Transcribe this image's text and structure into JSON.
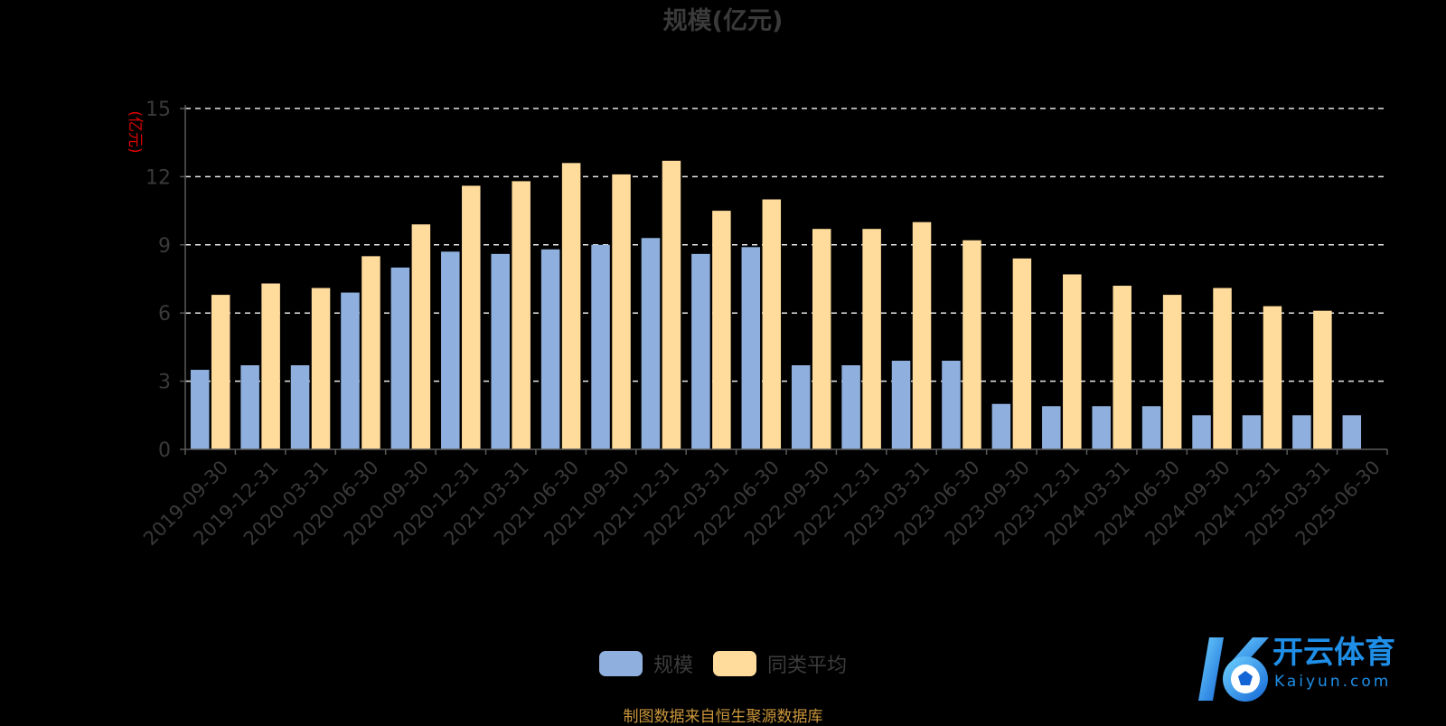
{
  "chart_data": {
    "type": "bar",
    "title": "规模(亿元)",
    "ylabel": "(亿元)",
    "ylim": [
      0,
      15
    ],
    "yticks": [
      0,
      3,
      6,
      9,
      12,
      15
    ],
    "grid": true,
    "legend_position": "bottom-center",
    "categories": [
      "2019-09-30",
      "2019-12-31",
      "2020-03-31",
      "2020-06-30",
      "2020-09-30",
      "2020-12-31",
      "2021-03-31",
      "2021-06-30",
      "2021-09-30",
      "2021-12-31",
      "2022-03-31",
      "2022-06-30",
      "2022-09-30",
      "2022-12-31",
      "2023-03-31",
      "2023-06-30",
      "2023-09-30",
      "2023-12-31",
      "2024-03-31",
      "2024-06-30",
      "2024-09-30",
      "2024-12-31",
      "2025-03-31",
      "2025-06-30"
    ],
    "series": [
      {
        "name": "规模",
        "color": "#8fb0de",
        "values": [
          3.5,
          3.7,
          3.7,
          6.9,
          8.0,
          8.7,
          8.6,
          8.8,
          9.0,
          9.3,
          8.6,
          8.9,
          3.7,
          3.7,
          3.9,
          3.9,
          2.0,
          1.9,
          1.9,
          1.9,
          1.5,
          1.5,
          1.5,
          1.5
        ]
      },
      {
        "name": "同类平均",
        "color": "#ffdc9c",
        "values": [
          6.8,
          7.3,
          7.1,
          8.5,
          9.9,
          11.6,
          11.8,
          12.6,
          12.1,
          12.7,
          10.5,
          11.0,
          9.7,
          9.7,
          10.0,
          9.2,
          8.4,
          7.7,
          7.2,
          6.8,
          7.1,
          6.3,
          6.1,
          null
        ]
      }
    ]
  },
  "footer": {
    "source": "制图数据来自恒生聚源数据库"
  },
  "watermark": {
    "brand": "开云体育",
    "domain": "Kaiyun.com"
  }
}
